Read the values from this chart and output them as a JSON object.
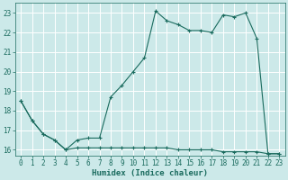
{
  "xlabel": "Humidex (Indice chaleur)",
  "ylabel": "",
  "bg_color": "#cce9e9",
  "grid_color": "#ffffff",
  "line_color": "#1a6b5e",
  "xlim": [
    -0.5,
    23.5
  ],
  "ylim": [
    15.7,
    23.5
  ],
  "yticks": [
    16,
    17,
    18,
    19,
    20,
    21,
    22,
    23
  ],
  "xticks": [
    0,
    1,
    2,
    3,
    4,
    5,
    6,
    7,
    8,
    9,
    10,
    11,
    12,
    13,
    14,
    15,
    16,
    17,
    18,
    19,
    20,
    21,
    22,
    23
  ],
  "line1_x": [
    0,
    1,
    2,
    3,
    4,
    5,
    6,
    7,
    8,
    9,
    10,
    11,
    12,
    13,
    14,
    15,
    16,
    17,
    18,
    19,
    20,
    21,
    22,
    23
  ],
  "line1_y": [
    18.5,
    17.5,
    16.8,
    16.5,
    16.0,
    16.5,
    16.6,
    16.6,
    18.7,
    19.3,
    20.0,
    20.7,
    23.1,
    22.6,
    22.4,
    22.1,
    22.1,
    22.0,
    22.9,
    22.8,
    23.0,
    21.7,
    15.8,
    15.8
  ],
  "line2_x": [
    0,
    1,
    2,
    3,
    4,
    5,
    6,
    7,
    8,
    9,
    10,
    11,
    12,
    13,
    14,
    15,
    16,
    17,
    18,
    19,
    20,
    21,
    22,
    23
  ],
  "line2_y": [
    18.5,
    17.5,
    16.8,
    16.5,
    16.0,
    16.1,
    16.1,
    16.1,
    16.1,
    16.1,
    16.1,
    16.1,
    16.1,
    16.1,
    16.0,
    16.0,
    16.0,
    16.0,
    15.9,
    15.9,
    15.9,
    15.9,
    15.8,
    15.8
  ],
  "tick_fontsize": 5.5,
  "xlabel_fontsize": 6.5,
  "marker_size": 3,
  "linewidth": 0.8
}
